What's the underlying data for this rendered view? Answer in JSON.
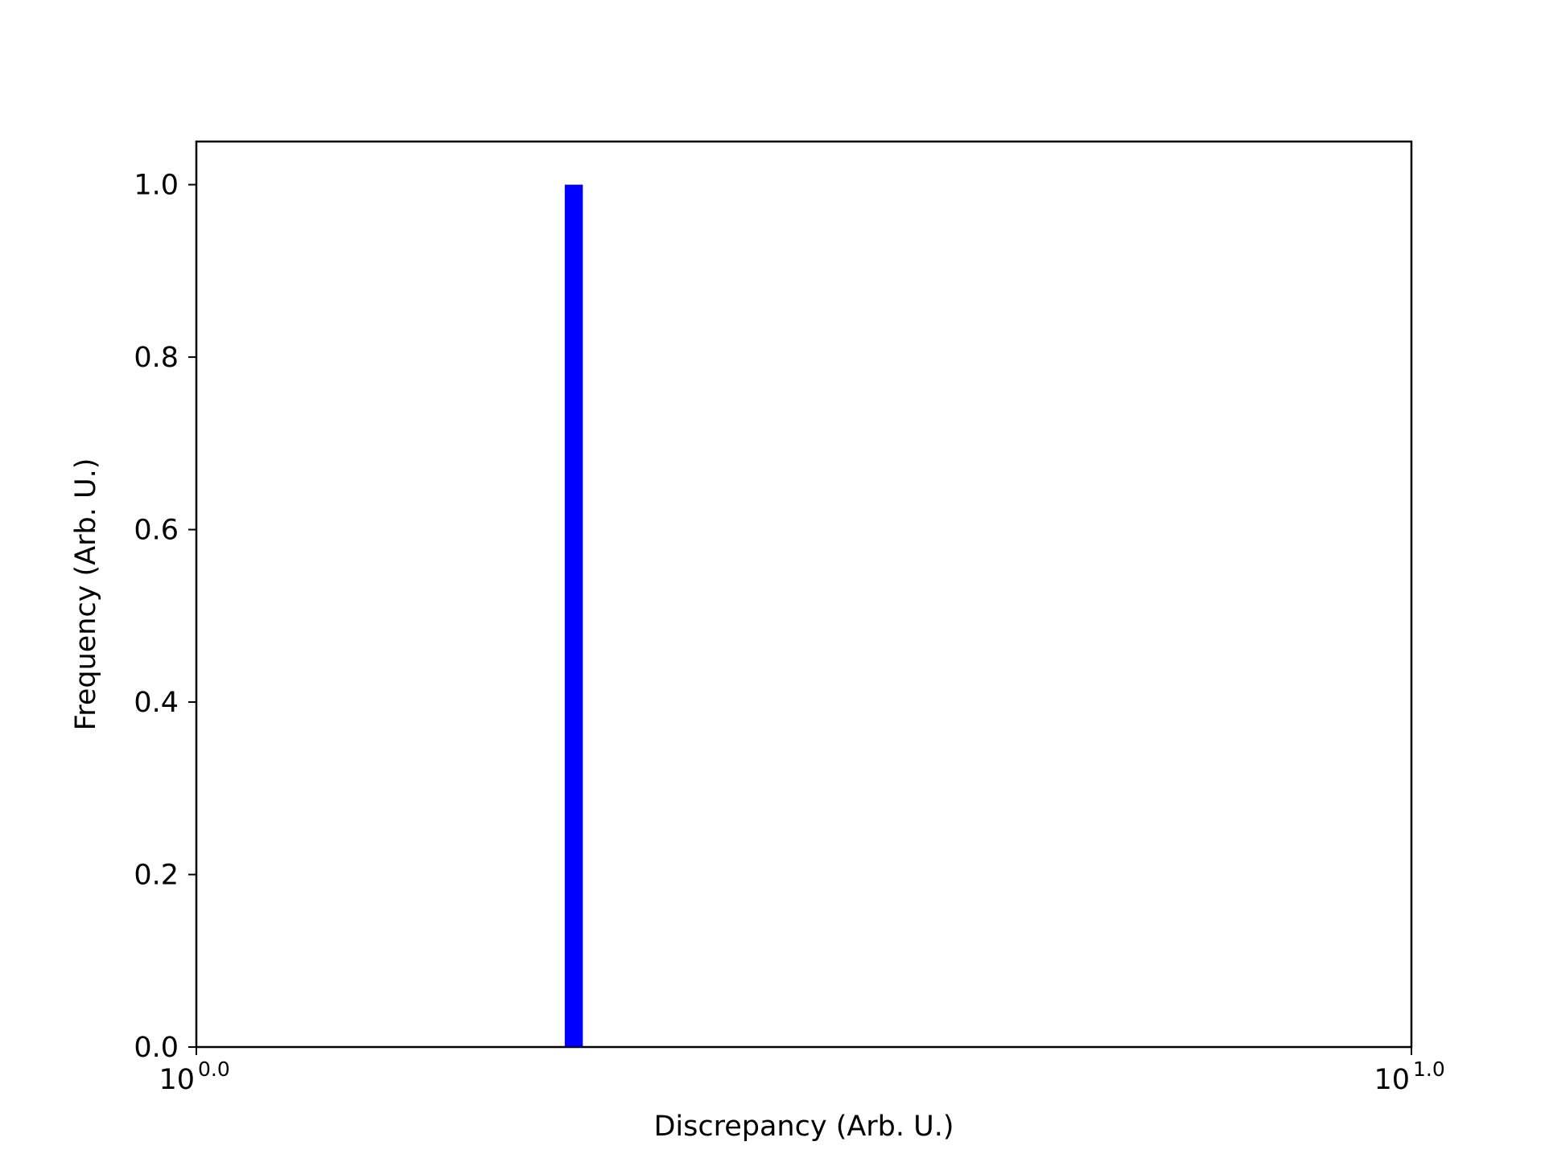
{
  "chart_data": {
    "type": "bar",
    "title": "",
    "xlabel": "Discrepancy (Arb. U.)",
    "ylabel": "Frequency (Arb. U.)",
    "x_scale": "log",
    "xlim": [
      1.0,
      10.0
    ],
    "ylim": [
      0,
      1.05
    ],
    "x_ticks": [
      {
        "value": 1.0,
        "base": "10",
        "exponent": "0.0"
      },
      {
        "value": 10.0,
        "base": "10",
        "exponent": "1.0"
      }
    ],
    "y_ticks": [
      {
        "value": 0.0,
        "label": "0.0"
      },
      {
        "value": 0.2,
        "label": "0.2"
      },
      {
        "value": 0.4,
        "label": "0.4"
      },
      {
        "value": 0.6,
        "label": "0.6"
      },
      {
        "value": 0.8,
        "label": "0.8"
      },
      {
        "value": 1.0,
        "label": "1.0"
      }
    ],
    "bars": [
      {
        "x_start": 2.01,
        "x_end": 2.08,
        "value": 1.0
      }
    ],
    "bar_color": "#0000ff",
    "grid": false,
    "legend": "none"
  }
}
